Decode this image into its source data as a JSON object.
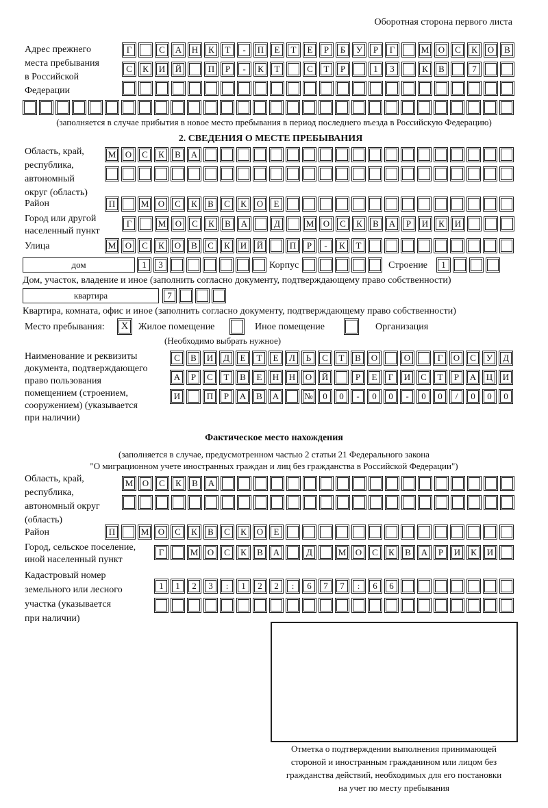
{
  "header": "Оборотная сторона первого листа",
  "prev_address": {
    "label": [
      "Адрес прежнего",
      "места пребывания",
      "в Российской",
      "Федерации"
    ],
    "rows": [
      [
        "Г",
        "",
        "С",
        "А",
        "Н",
        "К",
        "Т",
        "-",
        "П",
        "Е",
        "Т",
        "Е",
        "Р",
        "Б",
        "У",
        "Р",
        "Г",
        "",
        "М",
        "О",
        "С",
        "К",
        "О",
        "В"
      ],
      [
        "С",
        "К",
        "И",
        "Й",
        "",
        "П",
        "Р",
        "-",
        "К",
        "Т",
        "",
        "С",
        "Т",
        "Р",
        "",
        "1",
        "3",
        "",
        "К",
        "В",
        "",
        "7",
        "",
        ""
      ],
      [
        "",
        "",
        "",
        "",
        "",
        "",
        "",
        "",
        "",
        "",
        "",
        "",
        "",
        "",
        "",
        "",
        "",
        "",
        "",
        "",
        "",
        "",
        "",
        ""
      ]
    ],
    "row4": [
      "",
      "",
      "",
      "",
      "",
      "",
      "",
      "",
      "",
      "",
      "",
      "",
      "",
      "",
      "",
      "",
      "",
      "",
      "",
      "",
      "",
      "",
      "",
      "",
      "",
      "",
      "",
      "",
      "",
      ""
    ],
    "note": "(заполняется в случае прибытия в новое место пребывания в период последнего въезда в Российскую Федерацию)"
  },
  "section2": {
    "title": "2. СВЕДЕНИЯ О МЕСТЕ ПРЕБЫВАНИЯ",
    "region_label": [
      "Область, край,",
      "республика,",
      "автономный",
      "округ (область)"
    ],
    "region_rows": [
      [
        "М",
        "О",
        "С",
        "К",
        "В",
        "А",
        "",
        "",
        "",
        "",
        "",
        "",
        "",
        "",
        "",
        "",
        "",
        "",
        "",
        "",
        "",
        "",
        "",
        "",
        ""
      ],
      [
        "",
        "",
        "",
        "",
        "",
        "",
        "",
        "",
        "",
        "",
        "",
        "",
        "",
        "",
        "",
        "",
        "",
        "",
        "",
        "",
        "",
        "",
        "",
        "",
        ""
      ]
    ],
    "district_label": "Район",
    "district": [
      "П",
      "",
      "М",
      "О",
      "С",
      "К",
      "В",
      "С",
      "К",
      "О",
      "Е",
      "",
      "",
      "",
      "",
      "",
      "",
      "",
      "",
      "",
      "",
      "",
      "",
      "",
      ""
    ],
    "city_label": [
      "Город или другой",
      "населенный пункт"
    ],
    "city": [
      "Г",
      "",
      "М",
      "О",
      "С",
      "К",
      "В",
      "А",
      "",
      "Д",
      "",
      "М",
      "О",
      "С",
      "К",
      "В",
      "А",
      "Р",
      "И",
      "К",
      "И",
      "",
      "",
      ""
    ],
    "street_label": "Улица",
    "street": [
      "М",
      "О",
      "С",
      "К",
      "О",
      "В",
      "С",
      "К",
      "И",
      "Й",
      "",
      "П",
      "Р",
      "-",
      "К",
      "Т",
      "",
      "",
      "",
      "",
      "",
      "",
      "",
      "",
      ""
    ],
    "house_type": "дом",
    "house": [
      "1",
      "3",
      "",
      "",
      "",
      "",
      "",
      ""
    ],
    "korpus_label": "Корпус",
    "korpus": [
      "",
      "",
      "",
      "",
      ""
    ],
    "stroenie_label": "Строение",
    "stroenie": [
      "1",
      "",
      "",
      ""
    ],
    "house_note": "Дом, участок, владение и иное (заполнить согласно документу, подтверждающему право собственности)",
    "flat_type": "квартира",
    "flat": [
      "7",
      "",
      "",
      ""
    ],
    "flat_note": "Квартира, комната, офис и иное (заполнить согласно документу, подтверждающему право собственности)",
    "place_label": "Место пребывания:",
    "opt1_mark": "X",
    "opt1": "Жилое помещение",
    "opt2_mark": "",
    "opt2": "Иное помещение",
    "opt3_mark": "",
    "opt3": "Организация",
    "choose_note": "(Необходимо выбрать нужное)",
    "doc_label": [
      "Наименование и реквизиты",
      "документа, подтверждающего",
      "право пользования",
      "помещением (строением,",
      "сооружением) (указывается",
      "при наличии)"
    ],
    "doc_rows": [
      [
        "С",
        "В",
        "И",
        "Д",
        "Е",
        "Т",
        "Е",
        "Л",
        "Ь",
        "С",
        "Т",
        "В",
        "О",
        "",
        "О",
        "",
        "Г",
        "О",
        "С",
        "У",
        "Д"
      ],
      [
        "А",
        "Р",
        "С",
        "Т",
        "В",
        "Е",
        "Н",
        "Н",
        "О",
        "Й",
        "",
        "Р",
        "Е",
        "Г",
        "И",
        "С",
        "Т",
        "Р",
        "А",
        "Ц",
        "И"
      ],
      [
        "И",
        "",
        "П",
        "Р",
        "А",
        "В",
        "А",
        "",
        "№",
        "0",
        "0",
        "-",
        "0",
        "0",
        "-",
        "0",
        "0",
        "/",
        "0",
        "0",
        "0"
      ]
    ]
  },
  "actual": {
    "title": "Фактическое место нахождения",
    "note1": "(заполняется в случае, предусмотренном частью 2 статьи 21 Федерального закона",
    "note2": "\"О миграционном учете иностранных граждан и лиц без гражданства в Российской Федерации\")",
    "region_label": [
      "Область, край,",
      "республика,",
      "автономный округ",
      "(область)"
    ],
    "region_rows": [
      [
        "М",
        "О",
        "С",
        "К",
        "В",
        "А",
        "",
        "",
        "",
        "",
        "",
        "",
        "",
        "",
        "",
        "",
        "",
        "",
        "",
        "",
        "",
        "",
        "",
        ""
      ],
      [
        "",
        "",
        "",
        "",
        "",
        "",
        "",
        "",
        "",
        "",
        "",
        "",
        "",
        "",
        "",
        "",
        "",
        "",
        "",
        "",
        "",
        "",
        "",
        ""
      ]
    ],
    "district_label": "Район",
    "district": [
      "П",
      "",
      "М",
      "О",
      "С",
      "К",
      "В",
      "С",
      "К",
      "О",
      "Е",
      "",
      "",
      "",
      "",
      "",
      "",
      "",
      "",
      "",
      "",
      "",
      "",
      "",
      ""
    ],
    "city_label": [
      "Город, сельское поселение,",
      "иной населенный пункт"
    ],
    "city": [
      "Г",
      "",
      "М",
      "О",
      "С",
      "К",
      "В",
      "А",
      "",
      "Д",
      "",
      "М",
      "О",
      "С",
      "К",
      "В",
      "А",
      "Р",
      "И",
      "К",
      "И",
      ""
    ],
    "cadastre_label": [
      "Кадастровый номер",
      "земельного или лесного",
      "участка (указывается",
      "при наличии)"
    ],
    "cadastre_rows": [
      [
        "1",
        "1",
        "2",
        "3",
        ":",
        "1",
        "2",
        "2",
        ":",
        "6",
        "7",
        "7",
        ":",
        "6",
        "6",
        "",
        "",
        "",
        "",
        "",
        "",
        ""
      ],
      [
        "",
        "",
        "",
        "",
        "",
        "",
        "",
        "",
        "",
        "",
        "",
        "",
        "",
        "",
        "",
        "",
        "",
        "",
        "",
        "",
        "",
        ""
      ]
    ]
  },
  "stamp_caption": [
    "Отметка о подтверждении выполнения принимающей",
    "стороной и иностранным гражданином или лицом без",
    "гражданства действий, необходимых для его постановки",
    "на учет по месту пребывания"
  ]
}
